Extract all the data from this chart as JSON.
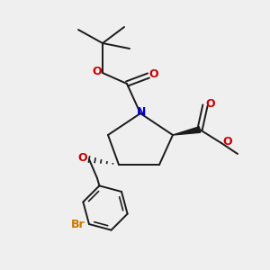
{
  "background_color": "#efefef",
  "bond_color": "#1a1a1a",
  "N_color": "#0000cc",
  "O_color": "#cc0000",
  "Br_color": "#cc7700",
  "fig_width": 3.0,
  "fig_height": 3.0,
  "dpi": 100,
  "xlim": [
    0,
    10
  ],
  "ylim": [
    0,
    10
  ]
}
